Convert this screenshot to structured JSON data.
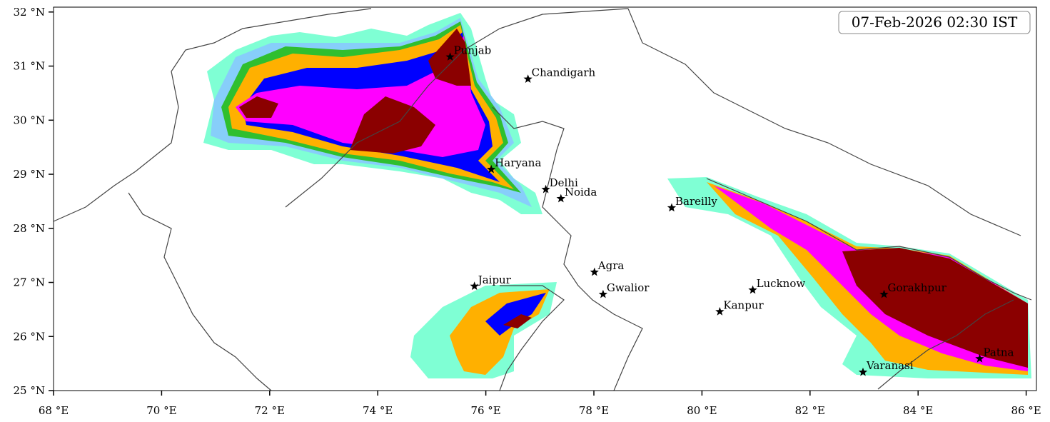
{
  "map": {
    "timestamp": "07-Feb-2026 02:30 IST",
    "xlim": [
      68,
      86.19
    ],
    "ylim": [
      25,
      32.09
    ],
    "xticks": [
      {
        "value": 68,
        "label": "68 °E"
      },
      {
        "value": 70,
        "label": "70 °E"
      },
      {
        "value": 72,
        "label": "72 °E"
      },
      {
        "value": 74,
        "label": "74 °E"
      },
      {
        "value": 76,
        "label": "76 °E"
      },
      {
        "value": 78,
        "label": "78 °E"
      },
      {
        "value": 80,
        "label": "80 °E"
      },
      {
        "value": 82,
        "label": "82 °E"
      },
      {
        "value": 84,
        "label": "84 °E"
      },
      {
        "value": 86,
        "label": "86 °E"
      }
    ],
    "yticks": [
      {
        "value": 25,
        "label": "25 °N"
      },
      {
        "value": 26,
        "label": "26 °N"
      },
      {
        "value": 27,
        "label": "27 °N"
      },
      {
        "value": 28,
        "label": "28 °N"
      },
      {
        "value": 29,
        "label": "29 °N"
      },
      {
        "value": 30,
        "label": "30 °N"
      },
      {
        "value": 31,
        "label": "31 °N"
      },
      {
        "value": 32,
        "label": "32 °N"
      }
    ],
    "cities": [
      {
        "name": "Punjab",
        "lon": 75.34,
        "lat": 31.17
      },
      {
        "name": "Chandigarh",
        "lon": 76.78,
        "lat": 30.76
      },
      {
        "name": "Haryana",
        "lon": 76.1,
        "lat": 29.09
      },
      {
        "name": "Delhi",
        "lon": 77.11,
        "lat": 28.72
      },
      {
        "name": "Noida",
        "lon": 77.39,
        "lat": 28.55
      },
      {
        "name": "Bareilly",
        "lon": 79.44,
        "lat": 28.38
      },
      {
        "name": "Agra",
        "lon": 78.01,
        "lat": 27.19
      },
      {
        "name": "Jaipur",
        "lon": 75.79,
        "lat": 26.93
      },
      {
        "name": "Gwalior",
        "lon": 78.17,
        "lat": 26.78
      },
      {
        "name": "Lucknow",
        "lon": 80.94,
        "lat": 26.86
      },
      {
        "name": "Kanpur",
        "lon": 80.33,
        "lat": 26.46
      },
      {
        "name": "Gorakhpur",
        "lon": 83.37,
        "lat": 26.78
      },
      {
        "name": "Patna",
        "lon": 85.14,
        "lat": 25.59
      },
      {
        "name": "Varanasi",
        "lon": 82.98,
        "lat": 25.34
      }
    ]
  }
}
